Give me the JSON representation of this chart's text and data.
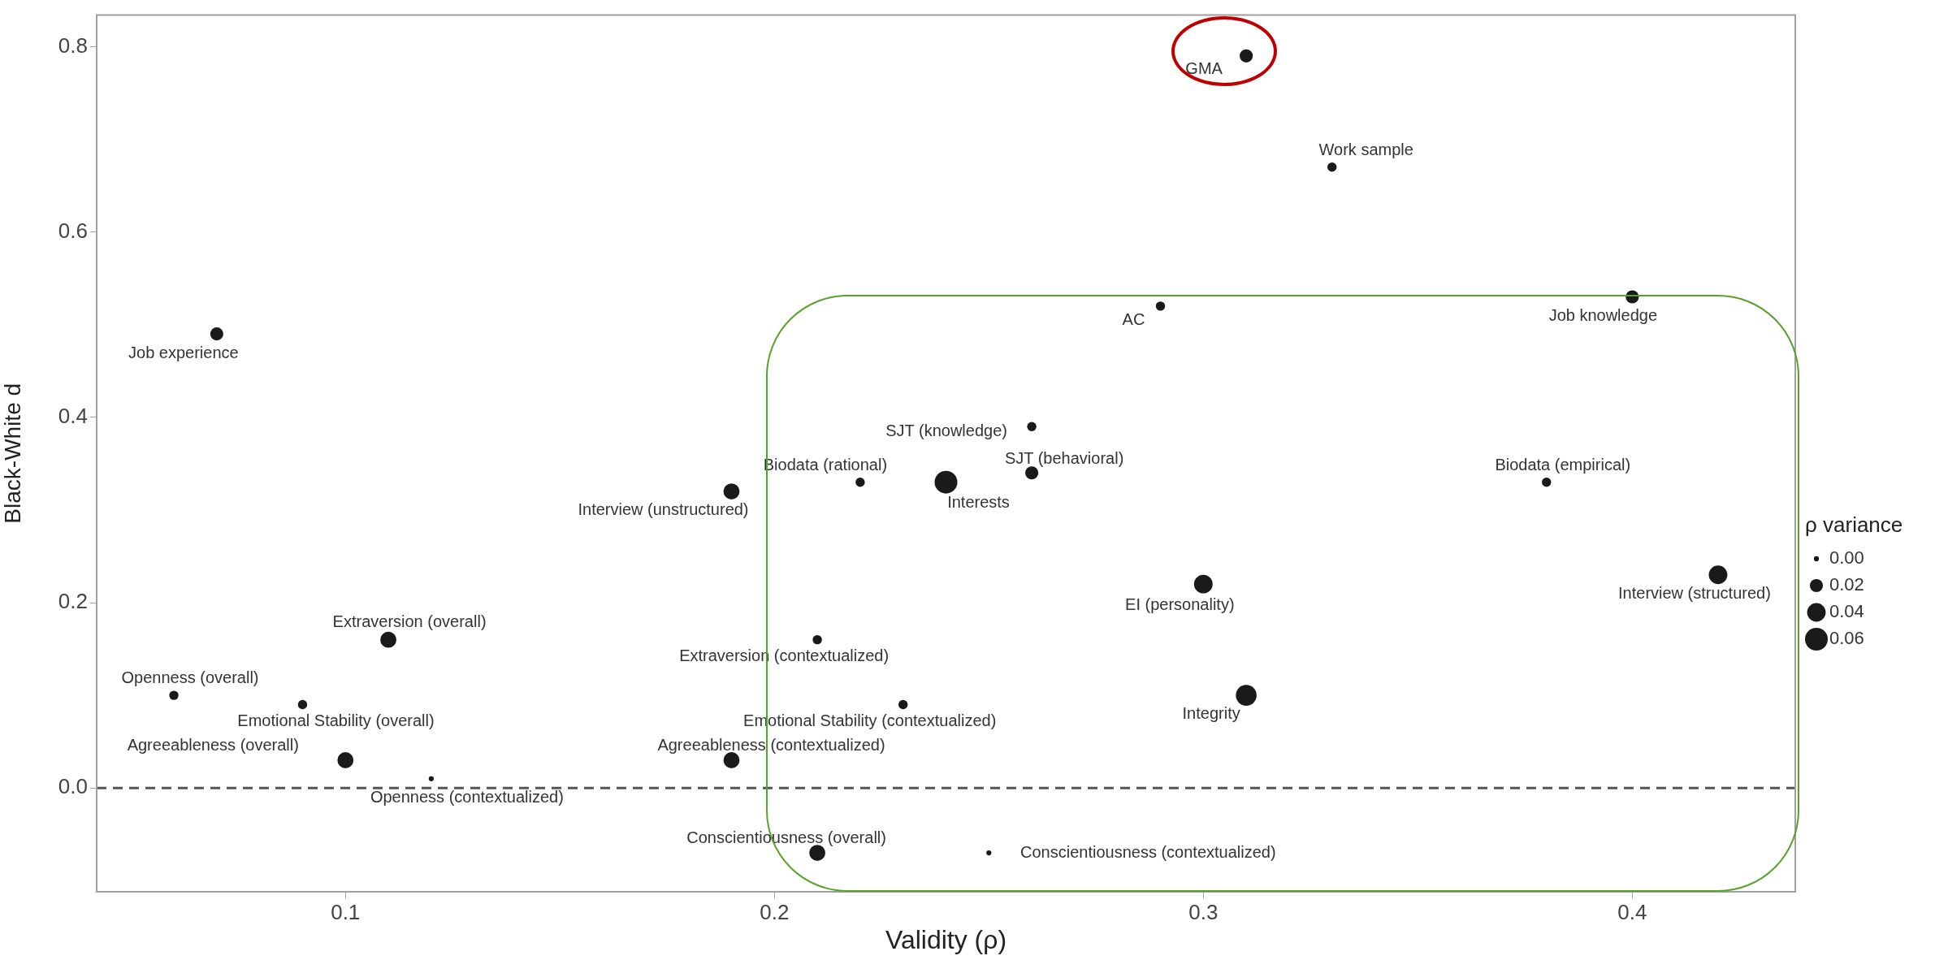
{
  "chart_data": {
    "type": "bubble",
    "xlabel": "Validity (ρ)",
    "ylabel": "Black-White d",
    "legend_title": "ρ variance",
    "grid": false,
    "marker": "circle",
    "xlim": [
      0.042,
      0.438
    ],
    "xticks": [
      0.1,
      0.2,
      0.3,
      0.4
    ],
    "ylim": [
      -0.112,
      0.834
    ],
    "yticks": [
      {
        "value": 0,
        "label": "0.0"
      },
      0.2,
      0.4,
      0.6,
      0.8
    ],
    "size_legend": [
      {
        "value": 0.003,
        "label": "0.00"
      },
      {
        "value": 0.02,
        "label": "0.02"
      },
      {
        "value": 0.04,
        "label": "0.04"
      },
      {
        "value": 0.06,
        "label": "0.06"
      }
    ],
    "series": [
      {
        "color": "#1a1a1a",
        "x": [
          0.31,
          0.33,
          0.29,
          0.4,
          0.07,
          0.26,
          0.26,
          0.22,
          0.24,
          0.19,
          0.38,
          0.42,
          0.3,
          0.11,
          0.21,
          0.06,
          0.09,
          0.23,
          0.31,
          0.1,
          0.19,
          0.12,
          0.21,
          0.25
        ],
        "values": [
          0.79,
          0.67,
          0.52,
          0.53,
          0.49,
          0.39,
          0.34,
          0.33,
          0.33,
          0.32,
          0.33,
          0.23,
          0.22,
          0.16,
          0.16,
          0.1,
          0.09,
          0.09,
          0.1,
          0.03,
          0.03,
          0.01,
          -0.07,
          -0.07
        ],
        "sizes": [
          0.02,
          0.01,
          0.01,
          0.02,
          0.02,
          0.01,
          0.02,
          0.01,
          0.06,
          0.03,
          0.01,
          0.04,
          0.04,
          0.03,
          0.01,
          0.01,
          0.01,
          0.01,
          0.05,
          0.03,
          0.03,
          0.003,
          0.03,
          0.003
        ]
      }
    ],
    "ref_lines": [
      {
        "axis": "y",
        "value": 0,
        "color": "#555555",
        "line_style": "dashed"
      }
    ],
    "annotations": [
      {
        "text": "GMA",
        "x": 0.31,
        "y": 0.79
      },
      {
        "text": "Work sample",
        "x": 0.33,
        "y": 0.67
      },
      {
        "text": "AC",
        "x": 0.29,
        "y": 0.52
      },
      {
        "text": "Job knowledge",
        "x": 0.4,
        "y": 0.53
      },
      {
        "text": "Job experience",
        "x": 0.07,
        "y": 0.49
      },
      {
        "text": "SJT (knowledge)",
        "x": 0.26,
        "y": 0.39
      },
      {
        "text": "SJT (behavioral)",
        "x": 0.26,
        "y": 0.34
      },
      {
        "text": "Biodata (rational)",
        "x": 0.22,
        "y": 0.33
      },
      {
        "text": "Interests",
        "x": 0.24,
        "y": 0.33
      },
      {
        "text": "Interview (unstructured)",
        "x": 0.19,
        "y": 0.32
      },
      {
        "text": "Biodata (empirical)",
        "x": 0.38,
        "y": 0.33
      },
      {
        "text": "Interview (structured)",
        "x": 0.42,
        "y": 0.23
      },
      {
        "text": "EI (personality)",
        "x": 0.3,
        "y": 0.22
      },
      {
        "text": "Extraversion (overall)",
        "x": 0.11,
        "y": 0.16
      },
      {
        "text": "Extraversion (contextualized)",
        "x": 0.21,
        "y": 0.16
      },
      {
        "text": "Openness (overall)",
        "x": 0.06,
        "y": 0.1
      },
      {
        "text": "Emotional Stability (overall)",
        "x": 0.09,
        "y": 0.09
      },
      {
        "text": "Emotional Stability (contextualized)",
        "x": 0.23,
        "y": 0.09
      },
      {
        "text": "Integrity",
        "x": 0.31,
        "y": 0.1
      },
      {
        "text": "Agreeableness (overall)",
        "x": 0.1,
        "y": 0.03
      },
      {
        "text": "Agreeableness (contextualized)",
        "x": 0.19,
        "y": 0.03
      },
      {
        "text": "Openness (contextualized)",
        "x": 0.12,
        "y": 0.01
      },
      {
        "text": "Conscientiousness (overall)",
        "x": 0.21,
        "y": -0.07
      },
      {
        "text": "Conscientiousness (contextualized)",
        "x": 0.25,
        "y": -0.07
      }
    ]
  }
}
